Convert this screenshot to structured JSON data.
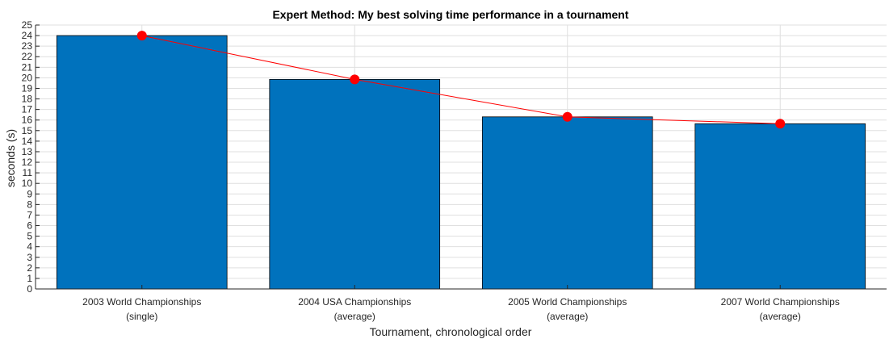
{
  "chart_data": {
    "type": "bar",
    "title": "Expert Method: My best solving time performance in a tournament",
    "xlabel": "Tournament, chronological order",
    "ylabel": "seconds (s)",
    "ylim": [
      0,
      25
    ],
    "yticks": [
      0,
      1,
      2,
      3,
      4,
      5,
      6,
      7,
      8,
      9,
      10,
      11,
      12,
      13,
      14,
      15,
      16,
      17,
      18,
      19,
      20,
      21,
      22,
      23,
      24,
      25
    ],
    "grid": true,
    "categories": [
      [
        "2003 World Championships",
        "(single)"
      ],
      [
        "2004 USA Championships",
        "(average)"
      ],
      [
        "2005 World Championships",
        "(average)"
      ],
      [
        "2007 World Championships",
        "(average)"
      ]
    ],
    "series": [
      {
        "type": "bar",
        "values": [
          24.0,
          19.85,
          16.3,
          15.65
        ]
      },
      {
        "type": "line",
        "values": [
          24.0,
          19.85,
          16.3,
          15.65
        ]
      }
    ],
    "colors": {
      "bar": "#0072bd",
      "line": "#ff0000",
      "grid": "#dfdfdf"
    }
  }
}
